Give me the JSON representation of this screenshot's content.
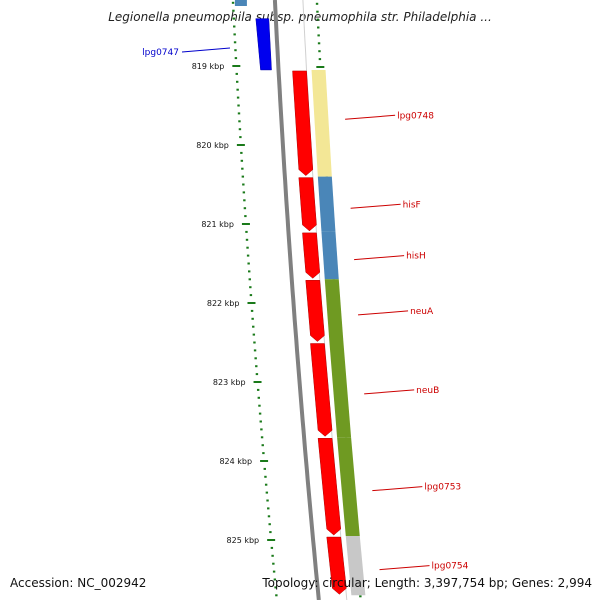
{
  "title": "Legionella pneumophila subsp. pneumophila str. Philadelphia ...",
  "footer": {
    "accession": "Accession: NC_002942",
    "summary": "Topology: circular; Length: 3,397,754 bp; Genes: 2,994"
  },
  "colors": {
    "ruler_tick": "#1a7a1a",
    "backbone": "#808080",
    "feature_red": "#ff0000",
    "feature_blue": "#0000ee",
    "label_blue": "#0000cc",
    "label_red": "#cc0000",
    "cog_yellow": "#f3e796",
    "cog_steelblue": "#4a86b8",
    "cog_olive": "#6f9a22",
    "cog_gray": "#c8c8c8"
  },
  "ruler": [
    {
      "label": "819 kbp",
      "kbp": 819
    },
    {
      "label": "820 kbp",
      "kbp": 820
    },
    {
      "label": "821 kbp",
      "kbp": 821
    },
    {
      "label": "822 kbp",
      "kbp": 822
    },
    {
      "label": "823 kbp",
      "kbp": 823
    },
    {
      "label": "824 kbp",
      "kbp": 824
    },
    {
      "label": "825 kbp",
      "kbp": 825
    }
  ],
  "genes": [
    {
      "name": "lpg0747",
      "start_kbp": 818.4,
      "end_kbp": 819.05,
      "strand": "-",
      "label_color": "blue"
    },
    {
      "name": "lpg0748",
      "start_kbp": 819.05,
      "end_kbp": 820.4,
      "strand": "+",
      "label_color": "red",
      "cog": "yellow"
    },
    {
      "name": "hisF",
      "start_kbp": 820.4,
      "end_kbp": 821.1,
      "strand": "+",
      "label_color": "red",
      "cog": "steelblue"
    },
    {
      "name": "hisH",
      "start_kbp": 821.1,
      "end_kbp": 821.7,
      "strand": "+",
      "label_color": "red",
      "cog": "steelblue"
    },
    {
      "name": "neuA",
      "start_kbp": 821.7,
      "end_kbp": 822.5,
      "strand": "+",
      "label_color": "red",
      "cog": "olive"
    },
    {
      "name": "neuB",
      "start_kbp": 822.5,
      "end_kbp": 823.7,
      "strand": "+",
      "label_color": "red",
      "cog": "olive"
    },
    {
      "name": "lpg0753",
      "start_kbp": 823.7,
      "end_kbp": 824.95,
      "strand": "+",
      "label_color": "red",
      "cog": "olive"
    },
    {
      "name": "lpg0754",
      "start_kbp": 824.95,
      "end_kbp": 825.7,
      "strand": "+",
      "label_color": "red",
      "cog": "gray"
    }
  ]
}
